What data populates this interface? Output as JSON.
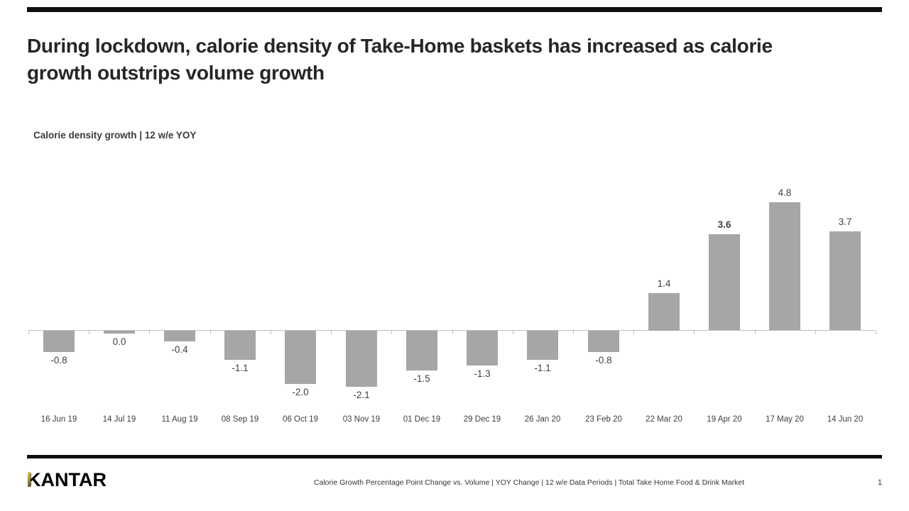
{
  "slide": {
    "title_line1": "During lockdown, calorie density of Take-Home baskets has increased as calorie",
    "title_line2": "growth outstrips volume growth"
  },
  "chart": {
    "subtitle": "Calorie density growth | 12 w/e YOY"
  },
  "chart_data": {
    "type": "bar",
    "title": "Calorie density growth | 12 w/e YOY",
    "categories": [
      "16 Jun 19",
      "14 Jul 19",
      "11 Aug 19",
      "08 Sep 19",
      "06 Oct 19",
      "03 Nov 19",
      "01 Dec 19",
      "29 Dec 19",
      "26 Jan 20",
      "23 Feb 20",
      "22 Mar 20",
      "19 Apr 20",
      "17 May 20",
      "14 Jun 20"
    ],
    "values": [
      -0.8,
      0.0,
      -0.4,
      -1.1,
      -2.0,
      -2.1,
      -1.5,
      -1.3,
      -1.1,
      -0.8,
      1.4,
      3.6,
      4.8,
      3.7
    ],
    "value_labels": [
      "-0.8",
      "0.0",
      "-0.4",
      "-1.1",
      "-2.0",
      "-2.1",
      "-1.5",
      "-1.3",
      "-1.1",
      "-0.8",
      "1.4",
      "3.6",
      "4.8",
      "3.7"
    ],
    "bold_label_index": 11,
    "xlabel": "",
    "ylabel": "",
    "ylim": [
      -3,
      6
    ],
    "grid": false,
    "legend": false,
    "bar_color": "#a6a6a6",
    "axis_color": "#bfbfbf",
    "label_color": "#3f3f3f"
  },
  "footer": {
    "logo_text": "KANTAR",
    "source_text": "Calorie Growth Percentage Point Change vs. Volume | YOY Change  | 12 w/e Data Periods | Total Take Home Food & Drink Market",
    "page_number": "1"
  },
  "colors": {
    "accent_bar": "#0f0f0f",
    "title_text": "#262626",
    "logo_gold": "#b89435"
  }
}
